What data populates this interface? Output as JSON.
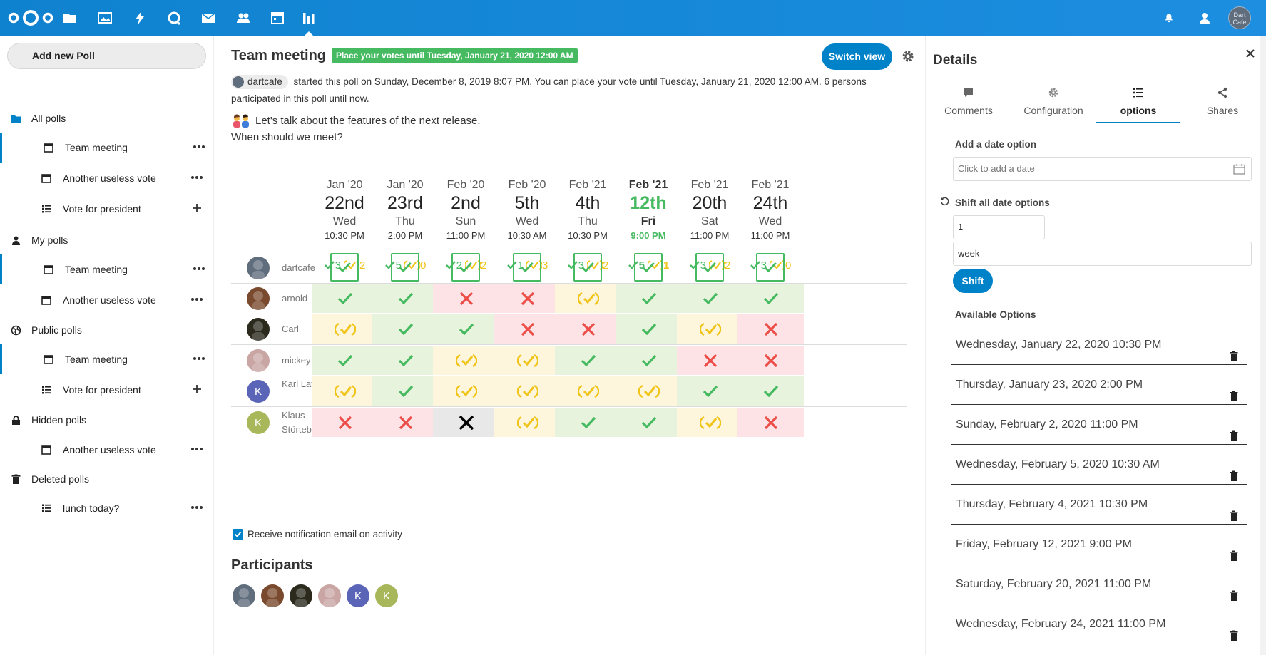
{
  "app": {
    "apps": [
      "files-icon",
      "photos-icon",
      "activity-icon",
      "talk-icon",
      "mail-icon",
      "contacts-icon",
      "calendar-icon",
      "polls-icon"
    ],
    "avatar_text": "Dart Cafe",
    "accent": "#0082c9"
  },
  "leftnav": {
    "new_poll": "Add new Poll",
    "categories": [
      {
        "label": "All polls",
        "items": [
          {
            "label": "Team meeting",
            "type": "date",
            "action": "more"
          },
          {
            "label": "Another useless vote",
            "type": "date",
            "action": "more"
          },
          {
            "label": "Vote for president",
            "type": "list",
            "action": "add"
          }
        ]
      },
      {
        "label": "My polls",
        "items": [
          {
            "label": "Team meeting",
            "type": "date",
            "action": "more"
          },
          {
            "label": "Another useless vote",
            "type": "date",
            "action": "more"
          }
        ]
      },
      {
        "label": "Public polls",
        "items": [
          {
            "label": "Team meeting",
            "type": "date",
            "action": "more"
          },
          {
            "label": "Vote for president",
            "type": "list",
            "action": "add"
          }
        ]
      },
      {
        "label": "Hidden polls",
        "items": [
          {
            "label": "Another useless vote",
            "type": "date",
            "action": "more"
          }
        ]
      },
      {
        "label": "Deleted polls",
        "items": [
          {
            "label": "lunch today?",
            "type": "list",
            "action": "more"
          }
        ]
      }
    ]
  },
  "poll": {
    "title": "Team meeting",
    "deadline_badge": "Place your votes until Tuesday, January 21, 2020 12:00 AM",
    "switch_view": "Switch view",
    "owner": "dartcafe",
    "description": "started this poll on Sunday, December 8, 2019 8:07 PM. You can place your vote until Tuesday, January 21, 2020 12:00 AM. 6 persons participated in this poll until now.",
    "motd_line1": "Let's talk about the features of the next release.",
    "motd_line2": "When should we meet?",
    "options": [
      {
        "mon": "Jan '20",
        "day": "22nd",
        "dow": "Wed",
        "time": "10:30 PM",
        "yes": "3",
        "maybe": "2"
      },
      {
        "mon": "Jan '20",
        "day": "23rd",
        "dow": "Thu",
        "time": "2:00 PM",
        "yes": "5",
        "maybe": "0"
      },
      {
        "mon": "Feb '20",
        "day": "2nd",
        "dow": "Sun",
        "time": "11:00 PM",
        "yes": "2",
        "maybe": "2"
      },
      {
        "mon": "Feb '20",
        "day": "5th",
        "dow": "Wed",
        "time": "10:30 AM",
        "yes": "1",
        "maybe": "3"
      },
      {
        "mon": "Feb '21",
        "day": "4th",
        "dow": "Thu",
        "time": "10:30 PM",
        "yes": "3",
        "maybe": "2"
      },
      {
        "mon": "Feb '21",
        "day": "12th",
        "dow": "Fri",
        "time": "9:00 PM",
        "yes": "5",
        "maybe": "1",
        "highlight": true
      },
      {
        "mon": "Feb '21",
        "day": "20th",
        "dow": "Sat",
        "time": "11:00 PM",
        "yes": "3",
        "maybe": "2"
      },
      {
        "mon": "Feb '21",
        "day": "24th",
        "dow": "Wed",
        "time": "11:00 PM",
        "yes": "3",
        "maybe": "0"
      }
    ],
    "participants": [
      {
        "name": "dartcafe",
        "avatar": "photo",
        "color": "#5f6d7c",
        "votes": [
          "own",
          "own",
          "own",
          "own",
          "own",
          "own",
          "own",
          "own"
        ]
      },
      {
        "name": "arnold",
        "avatar": "photo",
        "color": "#7a4a2e",
        "votes": [
          "yes",
          "yes",
          "no",
          "no",
          "maybe",
          "yes",
          "yes",
          "yes"
        ]
      },
      {
        "name": "Carl",
        "avatar": "photo",
        "color": "#2b2a1d",
        "votes": [
          "maybe",
          "yes",
          "yes",
          "no",
          "no",
          "yes",
          "maybe",
          "no"
        ]
      },
      {
        "name": "mickey",
        "avatar": "photo",
        "color": "#c9a6a4",
        "votes": [
          "yes",
          "yes",
          "maybe",
          "maybe",
          "yes",
          "yes",
          "no",
          "no"
        ]
      },
      {
        "name": "Karl Lafergeld",
        "avatar": "K",
        "color": "#5b65b8",
        "votes": [
          "maybe",
          "yes",
          "maybe",
          "maybe",
          "maybe",
          "maybe",
          "yes",
          "yes"
        ]
      },
      {
        "name": "Klaus Störtebecker",
        "avatar": "K",
        "color": "#a8b75a",
        "votes": [
          "no",
          "no",
          "none",
          "maybe",
          "yes",
          "yes",
          "maybe",
          "no"
        ]
      }
    ],
    "notify_label": "Receive notification email on activity",
    "participants_title": "Participants"
  },
  "sidebar": {
    "title": "Details",
    "tabs": [
      {
        "label": "Comments",
        "icon": "comment-icon"
      },
      {
        "label": "Configuration",
        "icon": "gear-icon"
      },
      {
        "label": "options",
        "icon": "list-icon",
        "active": true
      },
      {
        "label": "Shares",
        "icon": "share-icon"
      }
    ],
    "add_date_label": "Add a date option",
    "add_date_placeholder": "Click to add a date",
    "shift_label": "Shift all date options",
    "shift_value": "1",
    "shift_unit": "week",
    "shift_button": "Shift",
    "available_label": "Available Options",
    "available": [
      "Wednesday, January 22, 2020 10:30 PM",
      "Thursday, January 23, 2020 2:00 PM",
      "Sunday, February 2, 2020 11:00 PM",
      "Wednesday, February 5, 2020 10:30 AM",
      "Thursday, February 4, 2021 10:30 PM",
      "Friday, February 12, 2021 9:00 PM",
      "Saturday, February 20, 2021 11:00 PM",
      "Wednesday, February 24, 2021 11:00 PM"
    ]
  }
}
